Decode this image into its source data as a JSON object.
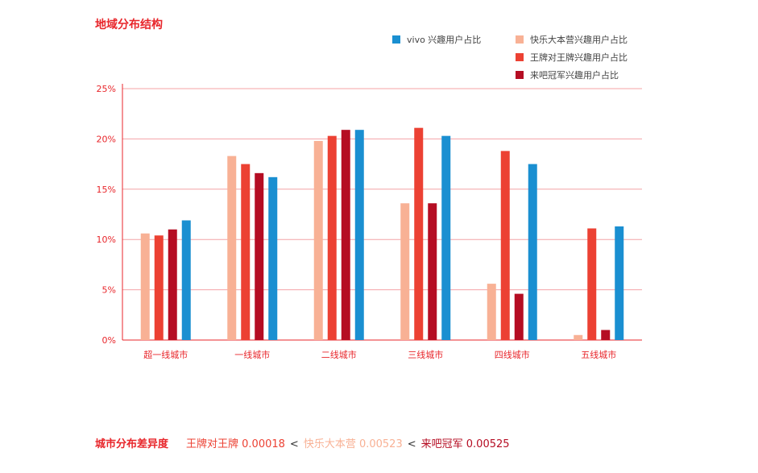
{
  "page_title": "地域分布结构",
  "legend": [
    {
      "label": "vivo 兴趣用户占比",
      "color": "#1a8fd1"
    },
    {
      "label": "快乐大本营兴趣用户占比",
      "color": "#f8b195"
    },
    {
      "label": "王牌对王牌兴趣用户占比",
      "color": "#ec4133"
    },
    {
      "label": "来吧冠军兴趣用户占比",
      "color": "#b50d23"
    }
  ],
  "chart_data": {
    "type": "bar",
    "title": "",
    "xlabel": "",
    "ylabel": "",
    "ylim": [
      0,
      25
    ],
    "y_ticks": [
      "0%",
      "5%",
      "10%",
      "15%",
      "20%",
      "25%"
    ],
    "y_tick_values": [
      0,
      5,
      10,
      15,
      20,
      25
    ],
    "grid": true,
    "legend_position": "top-right",
    "categories": [
      "超一线城市",
      "一线城市",
      "二线城市",
      "三线城市",
      "四线城市",
      "五线城市"
    ],
    "series": [
      {
        "name": "快乐大本营兴趣用户占比",
        "color": "#f8b195",
        "values": [
          10.6,
          18.3,
          19.8,
          13.6,
          5.6,
          0.5
        ]
      },
      {
        "name": "王牌对王牌兴趣用户占比",
        "color": "#ec4133",
        "values": [
          10.4,
          17.5,
          20.3,
          21.1,
          18.8,
          11.1
        ]
      },
      {
        "name": "来吧冠军兴趣用户占比",
        "color": "#b50d23",
        "values": [
          11.0,
          16.6,
          20.9,
          13.6,
          4.6,
          1.0
        ]
      },
      {
        "name": "vivo 兴趣用户占比",
        "color": "#1a8fd1",
        "values": [
          11.9,
          16.2,
          20.9,
          20.3,
          17.5,
          11.3
        ]
      }
    ],
    "axis_color": "#e8262b",
    "grid_color": "#f4a3a6"
  },
  "footer": {
    "title": "城市分布差异度",
    "items": [
      {
        "text": "王牌对王牌 0.00018",
        "color": "#ec4133"
      },
      {
        "text": "快乐大本营 0.00523",
        "color": "#f8b195"
      },
      {
        "text": "来吧冠军 0.00525",
        "color": "#b50d23"
      }
    ],
    "separator": "<"
  }
}
